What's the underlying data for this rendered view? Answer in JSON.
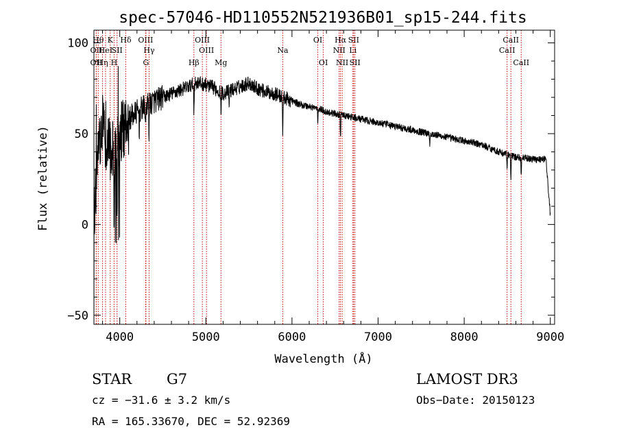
{
  "chart_data": {
    "type": "line",
    "title": "spec-57046-HD110552N521936B01_sp15-244.fits",
    "xlabel": "Wavelength (Å)",
    "ylabel": "Flux (relative)",
    "xlim": [
      3700,
      9050
    ],
    "ylim": [
      -55,
      107
    ],
    "xticks": [
      4000,
      5000,
      6000,
      7000,
      8000,
      9000
    ],
    "yticks": [
      -50,
      0,
      50,
      100
    ],
    "xticks_minor_step": 200,
    "yticks_minor_step": 10,
    "spectrum_anchors": {
      "wavelength": [
        3700,
        3750,
        3800,
        3850,
        3900,
        3950,
        4000,
        4100,
        4200,
        4300,
        4400,
        4500,
        4600,
        4700,
        4800,
        4900,
        5000,
        5100,
        5200,
        5300,
        5400,
        5500,
        5600,
        5700,
        5800,
        5900,
        6000,
        6100,
        6200,
        6300,
        6400,
        6500,
        6600,
        6700,
        6800,
        7000,
        7200,
        7400,
        7600,
        7800,
        8000,
        8200,
        8400,
        8600,
        8800,
        8950,
        9000
      ],
      "flux": [
        5,
        40,
        55,
        45,
        40,
        45,
        50,
        58,
        62,
        65,
        68,
        70,
        72,
        74,
        76,
        78,
        77,
        75,
        72,
        74,
        76,
        78,
        75,
        73,
        72,
        70,
        68,
        66,
        65,
        64,
        62,
        61,
        60,
        59,
        58,
        56,
        54,
        52,
        50,
        48,
        46,
        44,
        40,
        37,
        36,
        36,
        5
      ]
    },
    "absorption_features": [
      {
        "wavelength": 3934,
        "depth": 45
      },
      {
        "wavelength": 3969,
        "depth": 40
      },
      {
        "wavelength": 4101,
        "depth": 15
      },
      {
        "wavelength": 4227,
        "depth": 10
      },
      {
        "wavelength": 4300,
        "depth": 12
      },
      {
        "wavelength": 4340,
        "depth": 15
      },
      {
        "wavelength": 4861,
        "depth": 15
      },
      {
        "wavelength": 5175,
        "depth": 12
      },
      {
        "wavelength": 5270,
        "depth": 8
      },
      {
        "wavelength": 5893,
        "depth": 22
      },
      {
        "wavelength": 6300,
        "depth": 10
      },
      {
        "wavelength": 6563,
        "depth": 12
      },
      {
        "wavelength": 7600,
        "depth": 6
      },
      {
        "wavelength": 8498,
        "depth": 8
      },
      {
        "wavelength": 8542,
        "depth": 12
      },
      {
        "wavelength": 8662,
        "depth": 10
      }
    ],
    "line_markers": [
      {
        "wavelength": 3727,
        "label": "OII",
        "row": 2
      },
      {
        "wavelength": 3727,
        "label": "OII",
        "row": 3
      },
      {
        "wavelength": 3750,
        "label": "Hθ",
        "row": 1
      },
      {
        "wavelength": 3800,
        "label": "Hη",
        "row": 3
      },
      {
        "wavelength": 3835,
        "label": "HeI",
        "row": 2
      },
      {
        "wavelength": 3889,
        "label": "K",
        "row": 1
      },
      {
        "wavelength": 3934,
        "label": "H",
        "row": 3
      },
      {
        "wavelength": 3969,
        "label": "SII",
        "row": 2
      },
      {
        "wavelength": 4070,
        "label": "Hδ",
        "row": 1
      },
      {
        "wavelength": 4300,
        "label": "OIII",
        "row": 1
      },
      {
        "wavelength": 4341,
        "label": "Hγ",
        "row": 2
      },
      {
        "wavelength": 4304,
        "label": "G",
        "row": 3
      },
      {
        "wavelength": 4861,
        "label": "Hβ",
        "row": 3
      },
      {
        "wavelength": 4959,
        "label": "OIII",
        "row": 1
      },
      {
        "wavelength": 5007,
        "label": "OIII",
        "row": 2
      },
      {
        "wavelength": 5175,
        "label": "Mg",
        "row": 3
      },
      {
        "wavelength": 5893,
        "label": "Na",
        "row": 2
      },
      {
        "wavelength": 6300,
        "label": "OI",
        "row": 1
      },
      {
        "wavelength": 6364,
        "label": "OI",
        "row": 3
      },
      {
        "wavelength": 6548,
        "label": "NII",
        "row": 2
      },
      {
        "wavelength": 6563,
        "label": "Hα",
        "row": 1
      },
      {
        "wavelength": 6583,
        "label": "NII",
        "row": 3
      },
      {
        "wavelength": 6708,
        "label": "Li",
        "row": 2
      },
      {
        "wavelength": 6716,
        "label": "SII",
        "row": 1
      },
      {
        "wavelength": 6731,
        "label": "SII",
        "row": 3
      },
      {
        "wavelength": 8498,
        "label": "CaII",
        "row": 2
      },
      {
        "wavelength": 8542,
        "label": "CaII",
        "row": 1
      },
      {
        "wavelength": 8662,
        "label": "CaII",
        "row": 3
      }
    ],
    "marker_color": "#cc0000"
  },
  "info": {
    "object_class": "STAR",
    "subclass": "G7",
    "survey": "LAMOST DR3",
    "redshift": "cz = −31.6 ± 3.2 km/s",
    "obs_date": "Obs−Date: 20150123",
    "coords": "RA = 165.33670, DEC =  52.92369"
  }
}
